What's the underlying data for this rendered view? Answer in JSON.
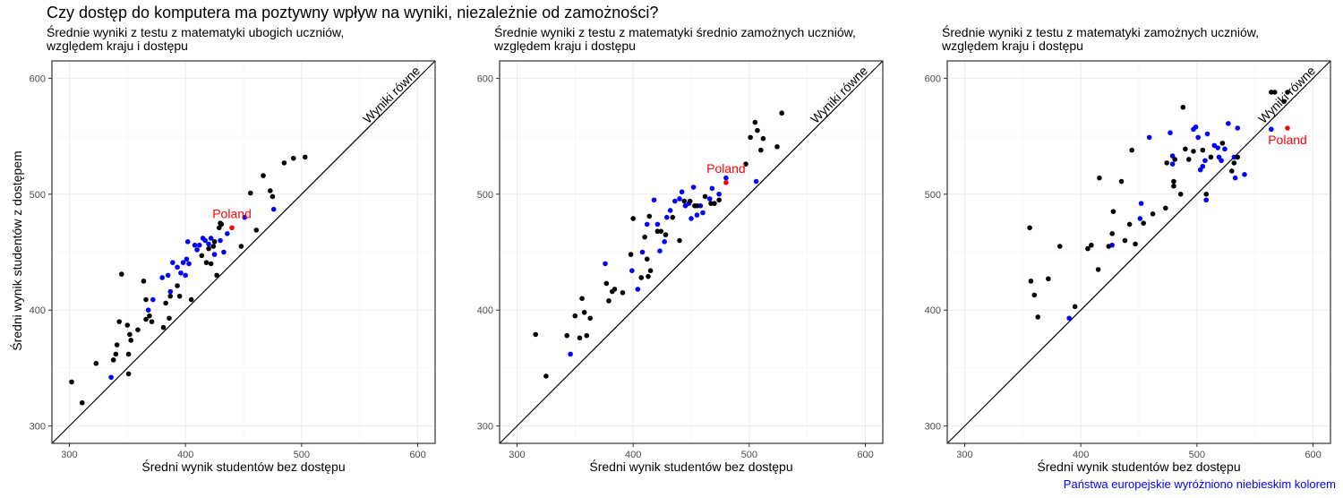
{
  "title": "Czy dostęp do komputera ma poztywny wpływ na wyniki, niezależnie od zamożności?",
  "caption": "Państwa europejskie wyróżniono niebieskim kolorem",
  "colors": {
    "europe": "#0000ff",
    "other": "#000000",
    "poland": "#ff0000"
  },
  "chart_data": [
    {
      "type": "scatter",
      "subtitle_line1": "Średnie wyniki z testu z matematyki ubogich uczniów,",
      "subtitle_line2": "względem kraju i dostępu",
      "xlabel": "Średni wynik studentów bez dostępu",
      "ylabel": "Średni wynik studentów z dostępem",
      "xlim": [
        285,
        615
      ],
      "ylim": [
        285,
        615
      ],
      "xticks": [
        300,
        400,
        500,
        600
      ],
      "yticks": [
        300,
        400,
        500,
        600
      ],
      "grid": true,
      "reference_line_label": "Wyniki równe",
      "highlight": {
        "label": "Poland",
        "x": 440,
        "y": 471
      },
      "series": [
        {
          "group": "europe",
          "points": [
            [
              336,
              342
            ],
            [
              372,
              409
            ],
            [
              368,
              400
            ],
            [
              380,
              428
            ],
            [
              385,
              430
            ],
            [
              389,
              441
            ],
            [
              387,
              416
            ],
            [
              393,
              437
            ],
            [
              396,
              432
            ],
            [
              398,
              441
            ],
            [
              401,
              444
            ],
            [
              402,
              459
            ],
            [
              403,
              440
            ],
            [
              408,
              456
            ],
            [
              410,
              452
            ],
            [
              412,
              456
            ],
            [
              415,
              462
            ],
            [
              417,
              460
            ],
            [
              420,
              457
            ],
            [
              422,
              462
            ],
            [
              425,
              448
            ],
            [
              430,
              460
            ],
            [
              433,
              450
            ],
            [
              436,
              466
            ],
            [
              451,
              480
            ],
            [
              476,
              487
            ],
            [
              400,
              430
            ]
          ]
        },
        {
          "group": "other",
          "points": [
            [
              302,
              338
            ],
            [
              311,
              320
            ],
            [
              323,
              354
            ],
            [
              338,
              357
            ],
            [
              340,
              362
            ],
            [
              341,
              370
            ],
            [
              343,
              390
            ],
            [
              345,
              431
            ],
            [
              350,
              387
            ],
            [
              351,
              362
            ],
            [
              351,
              345
            ],
            [
              352,
              379
            ],
            [
              353,
              374
            ],
            [
              359,
              383
            ],
            [
              364,
              425
            ],
            [
              366,
              409
            ],
            [
              366,
              392
            ],
            [
              369,
              395
            ],
            [
              371,
              390
            ],
            [
              381,
              385
            ],
            [
              383,
              406
            ],
            [
              386,
              393
            ],
            [
              387,
              412
            ],
            [
              393,
              421
            ],
            [
              395,
              412
            ],
            [
              405,
              409
            ],
            [
              414,
              447
            ],
            [
              418,
              441
            ],
            [
              420,
              453
            ],
            [
              422,
              440
            ],
            [
              424,
              455
            ],
            [
              427,
              430
            ],
            [
              429,
              471
            ],
            [
              430,
              475
            ],
            [
              431,
              474
            ],
            [
              448,
              455
            ],
            [
              456,
              501
            ],
            [
              461,
              469
            ],
            [
              467,
              516
            ],
            [
              473,
              503
            ],
            [
              475,
              498
            ],
            [
              485,
              527
            ],
            [
              493,
              531
            ],
            [
              503,
              532
            ],
            [
              425,
              459
            ]
          ]
        }
      ]
    },
    {
      "type": "scatter",
      "subtitle_line1": "Średnie wyniki z testu z matematyki średnio zamożnych uczniów,",
      "subtitle_line2": "względem kraju i dostępu",
      "xlabel": "Średni wynik studentów bez dostępu",
      "xlim": [
        285,
        615
      ],
      "ylim": [
        285,
        615
      ],
      "xticks": [
        300,
        400,
        500,
        600
      ],
      "yticks": [
        300,
        400,
        500,
        600
      ],
      "grid": true,
      "reference_line_label": "Wyniki równe",
      "highlight": {
        "label": "Poland",
        "x": 480,
        "y": 510
      },
      "series": [
        {
          "group": "europe",
          "points": [
            [
              346,
              362
            ],
            [
              376,
              440
            ],
            [
              399,
              434
            ],
            [
              404,
              418
            ],
            [
              408,
              450
            ],
            [
              412,
              474
            ],
            [
              418,
              495
            ],
            [
              421,
              474
            ],
            [
              423,
              451
            ],
            [
              427,
              459
            ],
            [
              429,
              480
            ],
            [
              432,
              486
            ],
            [
              436,
              494
            ],
            [
              440,
              496
            ],
            [
              442,
              502
            ],
            [
              445,
              490
            ],
            [
              448,
              492
            ],
            [
              450,
              479
            ],
            [
              452,
              506
            ],
            [
              455,
              482
            ],
            [
              458,
              490
            ],
            [
              460,
              484
            ],
            [
              466,
              496
            ],
            [
              468,
              505
            ],
            [
              474,
              500
            ],
            [
              480,
              514
            ],
            [
              506,
              511
            ]
          ]
        },
        {
          "group": "other",
          "points": [
            [
              316,
              379
            ],
            [
              325,
              343
            ],
            [
              343,
              378
            ],
            [
              350,
              395
            ],
            [
              354,
              376
            ],
            [
              356,
              410
            ],
            [
              358,
              398
            ],
            [
              360,
              378
            ],
            [
              363,
              393
            ],
            [
              377,
              423
            ],
            [
              379,
              408
            ],
            [
              382,
              416
            ],
            [
              384,
              418
            ],
            [
              391,
              415
            ],
            [
              398,
              448
            ],
            [
              400,
              479
            ],
            [
              407,
              428
            ],
            [
              410,
              463
            ],
            [
              412,
              444
            ],
            [
              414,
              481
            ],
            [
              413,
              429
            ],
            [
              415,
              434
            ],
            [
              421,
              468
            ],
            [
              424,
              468
            ],
            [
              428,
              465
            ],
            [
              434,
              480
            ],
            [
              440,
              460
            ],
            [
              444,
              494
            ],
            [
              449,
              494
            ],
            [
              453,
              490
            ],
            [
              455,
              490
            ],
            [
              462,
              498
            ],
            [
              467,
              492
            ],
            [
              470,
              492
            ],
            [
              474,
              495
            ],
            [
              497,
              526
            ],
            [
              501,
              549
            ],
            [
              505,
              562
            ],
            [
              507,
              555
            ],
            [
              510,
              538
            ],
            [
              512,
              548
            ],
            [
              524,
              541
            ],
            [
              528,
              570
            ]
          ]
        }
      ]
    },
    {
      "type": "scatter",
      "subtitle_line1": "Średnie wyniki z testu z matematyki zamożnych uczniów,",
      "subtitle_line2": "względem kraju i dostępu",
      "xlabel": "Średni wynik studentów bez dostępu",
      "xlim": [
        285,
        615
      ],
      "ylim": [
        285,
        615
      ],
      "xticks": [
        300,
        400,
        500,
        600
      ],
      "yticks": [
        300,
        400,
        500,
        600
      ],
      "grid": true,
      "reference_line_label": "Wyniki równe",
      "highlight": {
        "label": "Poland",
        "x": 578,
        "y": 557
      },
      "series": [
        {
          "group": "europe",
          "points": [
            [
              390,
              393
            ],
            [
              427,
              456
            ],
            [
              451,
              479
            ],
            [
              452,
              492
            ],
            [
              459,
              549
            ],
            [
              477,
              553
            ],
            [
              479,
              533
            ],
            [
              479,
              526
            ],
            [
              497,
              556
            ],
            [
              499,
              558
            ],
            [
              501,
              549
            ],
            [
              503,
              521
            ],
            [
              505,
              524
            ],
            [
              507,
              529
            ],
            [
              508,
              495
            ],
            [
              509,
              552
            ],
            [
              515,
              542
            ],
            [
              518,
              540
            ],
            [
              519,
              532
            ],
            [
              521,
              529
            ],
            [
              524,
              539
            ],
            [
              527,
              561
            ],
            [
              532,
              532
            ],
            [
              533,
              514
            ],
            [
              535,
              557
            ],
            [
              541,
              517
            ],
            [
              564,
              556
            ]
          ]
        },
        {
          "group": "other",
          "points": [
            [
              356,
              471
            ],
            [
              357,
              425
            ],
            [
              360,
              413
            ],
            [
              363,
              394
            ],
            [
              372,
              427
            ],
            [
              382,
              455
            ],
            [
              395,
              403
            ],
            [
              406,
              453
            ],
            [
              409,
              456
            ],
            [
              415,
              435
            ],
            [
              416,
              514
            ],
            [
              424,
              455
            ],
            [
              427,
              466
            ],
            [
              428,
              485
            ],
            [
              435,
              511
            ],
            [
              438,
              460
            ],
            [
              442,
              474
            ],
            [
              444,
              538
            ],
            [
              447,
              457
            ],
            [
              454,
              475
            ],
            [
              462,
              483
            ],
            [
              473,
              488
            ],
            [
              474,
              527
            ],
            [
              480,
              507
            ],
            [
              480,
              511
            ],
            [
              481,
              530
            ],
            [
              486,
              500
            ],
            [
              488,
              575
            ],
            [
              490,
              539
            ],
            [
              493,
              530
            ],
            [
              497,
              537
            ],
            [
              505,
              538
            ],
            [
              508,
              500
            ],
            [
              512,
              532
            ],
            [
              522,
              544
            ],
            [
              530,
              520
            ],
            [
              532,
              527
            ],
            [
              535,
              532
            ],
            [
              564,
              588
            ],
            [
              567,
              588
            ],
            [
              575,
              580
            ],
            [
              578,
              588
            ]
          ]
        }
      ]
    }
  ]
}
